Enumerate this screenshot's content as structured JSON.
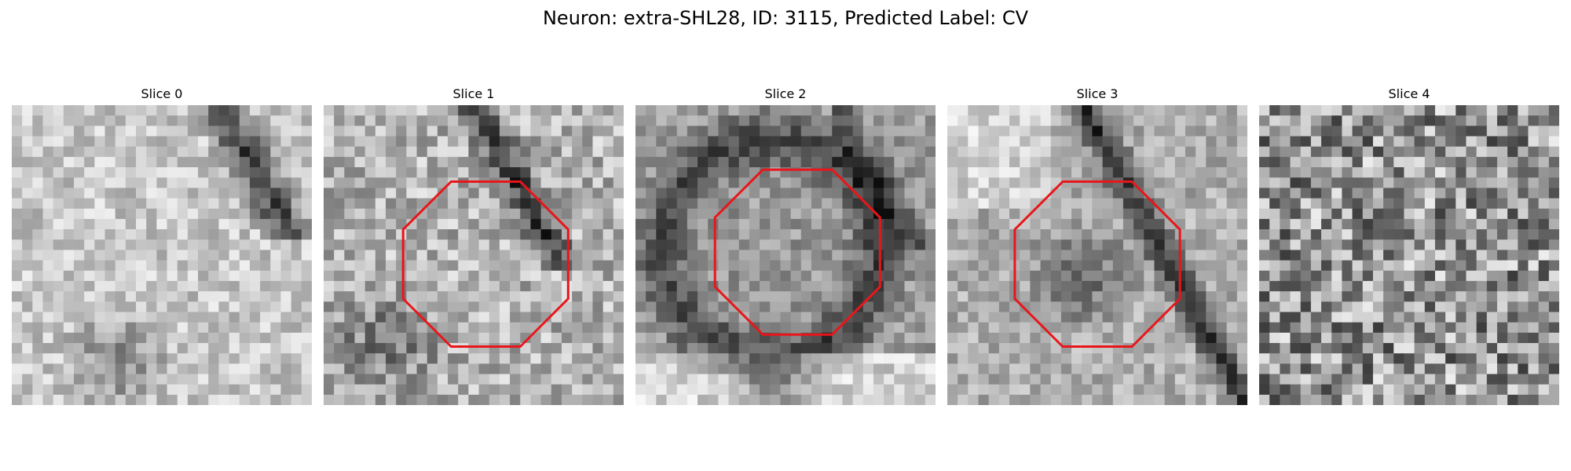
{
  "figure": {
    "title": "Neuron: extra-SHL28, ID: 3115, Predicted Label: CV"
  },
  "slices": [
    {
      "label": "Slice 0",
      "has_outline": false
    },
    {
      "label": "Slice 1",
      "has_outline": true
    },
    {
      "label": "Slice 2",
      "has_outline": true
    },
    {
      "label": "Slice 3",
      "has_outline": true
    },
    {
      "label": "Slice 4",
      "has_outline": false
    }
  ],
  "colors": {
    "outline": "#e8161b"
  }
}
